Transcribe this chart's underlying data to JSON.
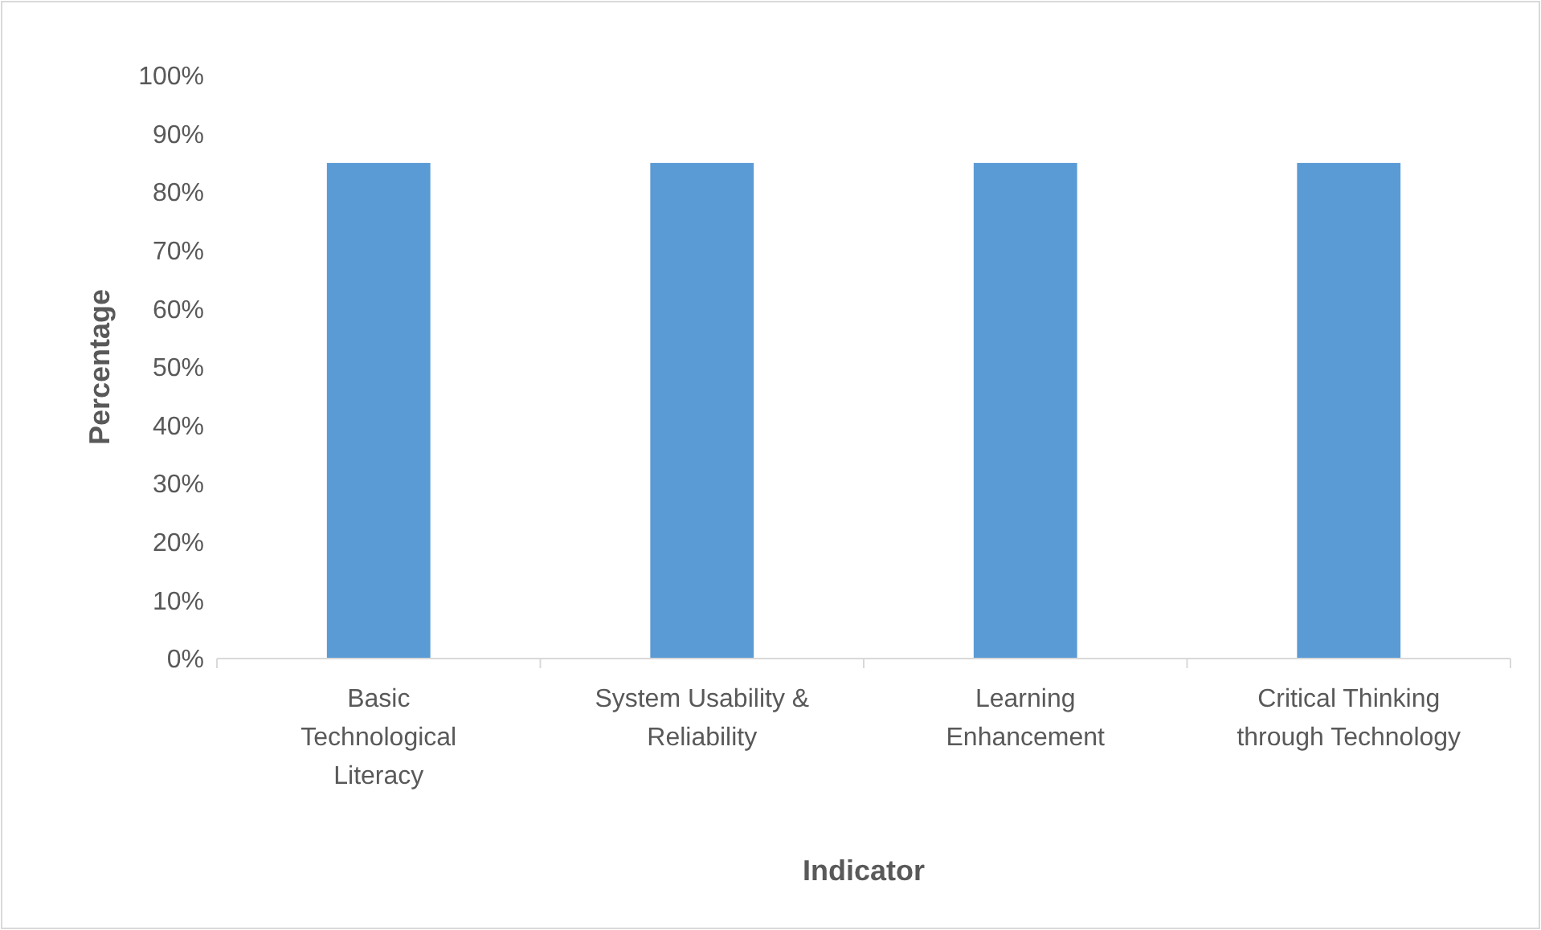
{
  "chart_data": {
    "type": "bar",
    "xlabel": "Indicator",
    "ylabel": "Percentage",
    "categories": [
      "Basic Technological Literacy",
      "System Usability & Reliability",
      "Learning Enhancement",
      "Critical Thinking through Technology"
    ],
    "values": [
      85,
      85,
      85,
      85
    ],
    "color": "#5b9bd5",
    "ylim": [
      0,
      100
    ],
    "yticks": [
      {
        "value": 0,
        "label": "0%"
      },
      {
        "value": 10,
        "label": "10%"
      },
      {
        "value": 20,
        "label": "20%"
      },
      {
        "value": 30,
        "label": "30%"
      },
      {
        "value": 40,
        "label": "40%"
      },
      {
        "value": 50,
        "label": "50%"
      },
      {
        "value": 60,
        "label": "60%"
      },
      {
        "value": 70,
        "label": "70%"
      },
      {
        "value": 80,
        "label": "80%"
      },
      {
        "value": 90,
        "label": "90%"
      },
      {
        "value": 100,
        "label": "100%"
      }
    ],
    "grid": false
  }
}
